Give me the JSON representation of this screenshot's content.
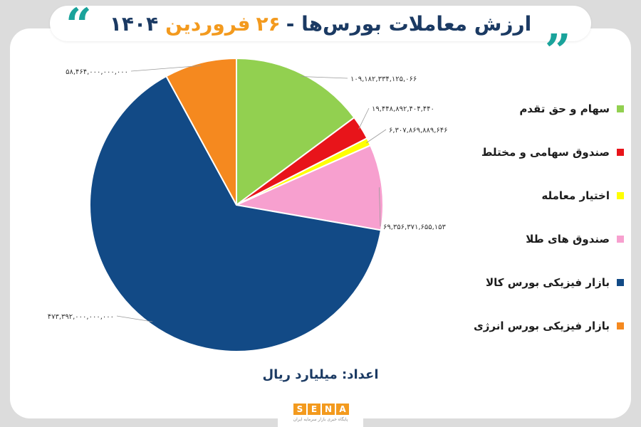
{
  "header": {
    "title_main": "ارزش معاملات بورس‌ها -",
    "title_day": "۲۶",
    "title_month": "فروردین",
    "title_year": "۱۴۰۴",
    "quote_open": "“",
    "quote_close": "„"
  },
  "chart_data": {
    "type": "pie",
    "title": "ارزش معاملات بورس‌ها - ۲۶ فروردین ۱۴۰۴",
    "unit": "اعداد: میلیارد ریال",
    "legend_position": "right",
    "slices": [
      {
        "name": "سهام و حق تقدم",
        "value": 109182334125066,
        "label": "۱۰۹,۱۸۲,۳۳۴,۱۲۵,۰۶۶",
        "color": "#92d050"
      },
      {
        "name": "صندوق سهامی و مختلط",
        "value": 19448892404440,
        "label": "۱۹,۴۴۸,۸۹۲,۴۰۴,۴۴۰",
        "color": "#e8141a"
      },
      {
        "name": "اختیار معامله",
        "value": 6307869889646,
        "label": "۶,۳۰۷,۸۶۹,۸۸۹,۶۴۶",
        "color": "#ffff00"
      },
      {
        "name": "صندوق های طلا",
        "value": 69356371655153,
        "label": "۶۹,۳۵۶,۳۷۱,۶۵۵,۱۵۳",
        "color": "#f7a0cf"
      },
      {
        "name": "بازار فیزیکی بورس کالا",
        "value": 473392000000000,
        "label": "۴۷۳,۳۹۲,۰۰۰,۰۰۰,۰۰۰",
        "color": "#124a86"
      },
      {
        "name": "بازار فیزیکی بورس انرژی",
        "value": 58464000000000,
        "label": "۵۸,۴۶۴,۰۰۰,۰۰۰,۰۰۰",
        "color": "#f5891f"
      }
    ]
  },
  "footer": {
    "unit_label": "اعداد: میلیارد ریال",
    "logo_letters": [
      "S",
      "E",
      "N",
      "A"
    ],
    "logo_subtitle": "پایگاه خبری بازار سرمایه ایران"
  }
}
